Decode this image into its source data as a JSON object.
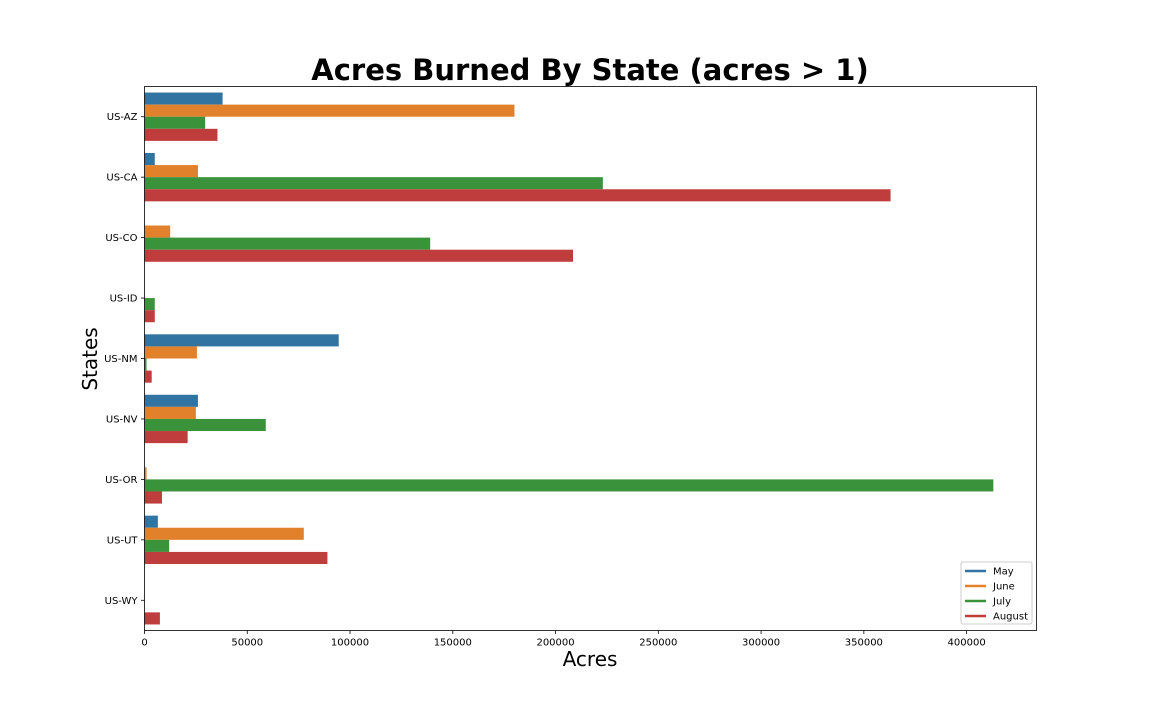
{
  "chart_data": {
    "type": "bar",
    "orientation": "horizontal",
    "title": "Acres Burned By State (acres > 1)",
    "xlabel": "Acres",
    "ylabel": "States",
    "categories": [
      "US-AZ",
      "US-CA",
      "US-CO",
      "US-ID",
      "US-NM",
      "US-NV",
      "US-OR",
      "US-UT",
      "US-WY"
    ],
    "xlim": [
      0,
      434000
    ],
    "xticks": [
      0,
      50000,
      100000,
      150000,
      200000,
      250000,
      300000,
      350000,
      400000
    ],
    "grid": false,
    "legend_position": "lower-right",
    "series": [
      {
        "name": "May",
        "color": "#3274a1",
        "values": [
          38000,
          5000,
          0,
          0,
          94500,
          26000,
          0,
          6500,
          0
        ]
      },
      {
        "name": "June",
        "color": "#e1812c",
        "values": [
          180000,
          26000,
          12500,
          0,
          25500,
          25000,
          1000,
          77500,
          0
        ]
      },
      {
        "name": "July",
        "color": "#3a923a",
        "values": [
          29500,
          223000,
          139000,
          5000,
          1000,
          59000,
          413000,
          12000,
          0
        ]
      },
      {
        "name": "August",
        "color": "#c03d3e",
        "values": [
          35500,
          363000,
          208500,
          5000,
          3500,
          21000,
          8500,
          89000,
          7500
        ]
      }
    ]
  }
}
